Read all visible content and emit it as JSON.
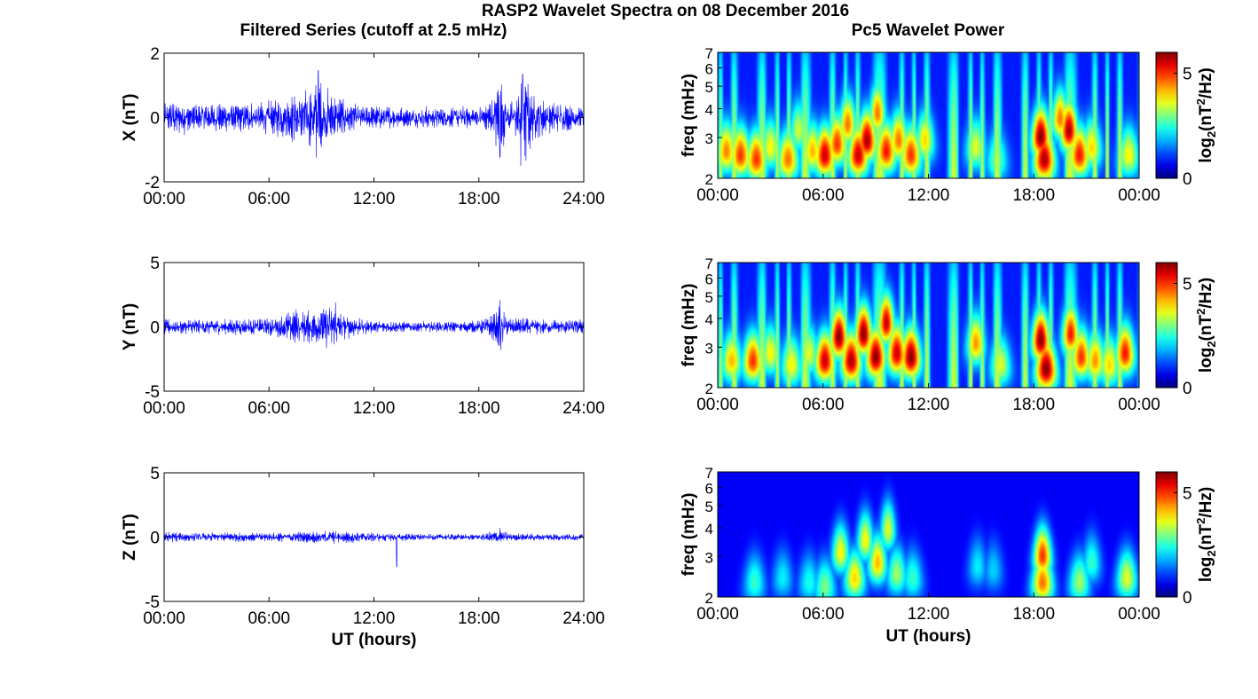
{
  "figure_title": "RASP2 Wavelet Spectra on 08 December 2016",
  "left_title": "Filtered Series (cutoff at 2.5 mHz)",
  "right_title": "Pc5 Wavelet Power",
  "colorbar_label_base": "log",
  "colorbar_label_sub": "2",
  "colorbar_label_unit": "(nT",
  "colorbar_label_sup": "2",
  "colorbar_label_tail": "/Hz)",
  "colors": {
    "series": "#0000ff",
    "axis": "#000000"
  },
  "chart_data": [
    {
      "type": "line",
      "panel": "X",
      "title": "",
      "xlabel": "",
      "ylabel": "X (nT)",
      "xlim": [
        0,
        24
      ],
      "ylim": [
        -2,
        2
      ],
      "xticks": [
        "00:00",
        "06:00",
        "12:00",
        "18:00",
        "24:00"
      ],
      "yticks": [
        "-2",
        "0",
        "2"
      ],
      "envelope_hours": [
        0,
        1,
        2,
        3,
        4,
        5,
        6,
        6.5,
        7,
        7.5,
        8,
        8.5,
        8.8,
        9,
        9.5,
        10,
        11,
        12,
        13,
        14,
        15,
        16,
        17,
        18,
        18.8,
        19.2,
        19.6,
        20,
        20.4,
        20.8,
        21,
        22,
        23,
        24
      ],
      "envelope_nT": [
        0.4,
        0.45,
        0.4,
        0.4,
        0.35,
        0.4,
        0.45,
        0.5,
        0.6,
        0.7,
        0.75,
        0.85,
        1.3,
        0.9,
        0.7,
        0.55,
        0.35,
        0.3,
        0.3,
        0.25,
        0.3,
        0.25,
        0.3,
        0.3,
        0.5,
        1.2,
        0.5,
        0.4,
        0.9,
        1.4,
        0.6,
        0.4,
        0.35,
        0.3
      ],
      "spikes": [
        {
          "x": 8.8,
          "y": 1.45
        },
        {
          "x": 8.7,
          "y": -1.25
        },
        {
          "x": 19.2,
          "y": -1.25
        },
        {
          "x": 20.4,
          "y": -1.5
        },
        {
          "x": 20.5,
          "y": 1.35
        }
      ]
    },
    {
      "type": "line",
      "panel": "Y",
      "title": "",
      "xlabel": "",
      "ylabel": "Y (nT)",
      "xlim": [
        0,
        24
      ],
      "ylim": [
        -5,
        5
      ],
      "xticks": [
        "00:00",
        "06:00",
        "12:00",
        "18:00",
        "24:00"
      ],
      "yticks": [
        "-5",
        "0",
        "5"
      ],
      "envelope_hours": [
        0,
        2,
        4,
        6,
        7,
        7.5,
        8,
        9,
        9.5,
        10,
        11,
        12,
        14,
        16,
        18,
        18.8,
        19.2,
        19.6,
        20,
        22,
        24
      ],
      "envelope_nT": [
        0.5,
        0.5,
        0.5,
        0.6,
        0.9,
        1.2,
        1.0,
        1.2,
        1.5,
        1.0,
        0.6,
        0.4,
        0.35,
        0.35,
        0.4,
        0.9,
        1.5,
        0.7,
        0.6,
        0.5,
        0.5
      ],
      "spikes": [
        {
          "x": 19.2,
          "y": 2.1
        },
        {
          "x": 19.25,
          "y": -1.8
        },
        {
          "x": 9.8,
          "y": 1.9
        }
      ]
    },
    {
      "type": "line",
      "panel": "Z",
      "title": "",
      "xlabel": "UT (hours)",
      "ylabel": "Z (nT)",
      "xlim": [
        0,
        24
      ],
      "ylim": [
        -5,
        5
      ],
      "xticks": [
        "00:00",
        "06:00",
        "12:00",
        "18:00",
        "24:00"
      ],
      "yticks": [
        "-5",
        "0",
        "5"
      ],
      "envelope_hours": [
        0,
        3,
        6,
        9,
        10,
        12,
        15,
        18,
        19.2,
        20,
        22,
        24
      ],
      "envelope_nT": [
        0.35,
        0.3,
        0.3,
        0.4,
        0.45,
        0.3,
        0.2,
        0.2,
        0.5,
        0.25,
        0.25,
        0.25
      ],
      "spikes": [
        {
          "x": 13.3,
          "y": -2.3
        },
        {
          "x": 19.2,
          "y": 0.7
        }
      ]
    },
    {
      "type": "heatmap",
      "panel": "X wavelet",
      "title": "",
      "xlabel": "",
      "ylabel": "freq (mHz)",
      "xlim": [
        0,
        24
      ],
      "ylim_mHz": [
        2,
        7
      ],
      "y_scale": "log",
      "xticks": [
        "00:00",
        "06:00",
        "12:00",
        "18:00",
        "00:00"
      ],
      "yticks": [
        "2",
        "3",
        "4",
        "5",
        "6",
        "7"
      ],
      "colorbar_ticks": [
        "0",
        "5"
      ],
      "clim": [
        0,
        6
      ],
      "colormap": "jet",
      "background_power": 0.9,
      "noise_level": 1.2,
      "blobs": [
        {
          "t": 0.5,
          "f": 2.6,
          "p": 4.5
        },
        {
          "t": 1.3,
          "f": 2.5,
          "p": 5.0
        },
        {
          "t": 2.2,
          "f": 2.4,
          "p": 5.0
        },
        {
          "t": 3.0,
          "f": 2.7,
          "p": 3.8
        },
        {
          "t": 4.0,
          "f": 2.4,
          "p": 4.6
        },
        {
          "t": 4.6,
          "f": 3.2,
          "p": 3.5
        },
        {
          "t": 5.4,
          "f": 2.6,
          "p": 4.2
        },
        {
          "t": 6.1,
          "f": 2.5,
          "p": 5.6
        },
        {
          "t": 6.8,
          "f": 2.8,
          "p": 5.0
        },
        {
          "t": 7.4,
          "f": 3.4,
          "p": 4.6
        },
        {
          "t": 8.0,
          "f": 2.5,
          "p": 5.6
        },
        {
          "t": 8.5,
          "f": 2.9,
          "p": 5.8
        },
        {
          "t": 9.1,
          "f": 3.8,
          "p": 4.6
        },
        {
          "t": 9.6,
          "f": 2.6,
          "p": 5.2
        },
        {
          "t": 10.3,
          "f": 2.9,
          "p": 4.6
        },
        {
          "t": 11.0,
          "f": 2.5,
          "p": 5.0
        },
        {
          "t": 11.8,
          "f": 2.9,
          "p": 4.0
        },
        {
          "t": 14.7,
          "f": 2.7,
          "p": 3.6
        },
        {
          "t": 15.9,
          "f": 2.4,
          "p": 3.0
        },
        {
          "t": 18.4,
          "f": 3.0,
          "p": 6.0
        },
        {
          "t": 18.6,
          "f": 2.4,
          "p": 5.8
        },
        {
          "t": 19.5,
          "f": 3.6,
          "p": 4.6
        },
        {
          "t": 20.0,
          "f": 3.2,
          "p": 5.8
        },
        {
          "t": 20.6,
          "f": 2.5,
          "p": 5.2
        },
        {
          "t": 21.3,
          "f": 2.7,
          "p": 4.0
        },
        {
          "t": 23.4,
          "f": 2.5,
          "p": 3.8
        }
      ]
    },
    {
      "type": "heatmap",
      "panel": "Y wavelet",
      "title": "",
      "xlabel": "",
      "ylabel": "freq (mHz)",
      "xlim": [
        0,
        24
      ],
      "ylim_mHz": [
        2,
        7
      ],
      "y_scale": "log",
      "xticks": [
        "00:00",
        "06:00",
        "12:00",
        "18:00",
        "00:00"
      ],
      "yticks": [
        "2",
        "3",
        "4",
        "5",
        "6",
        "7"
      ],
      "colorbar_ticks": [
        "0",
        "5"
      ],
      "clim": [
        0,
        6
      ],
      "colormap": "jet",
      "background_power": 0.9,
      "noise_level": 1.2,
      "blobs": [
        {
          "t": 0.8,
          "f": 2.6,
          "p": 4.2
        },
        {
          "t": 2.0,
          "f": 2.6,
          "p": 5.0
        },
        {
          "t": 3.0,
          "f": 2.8,
          "p": 3.8
        },
        {
          "t": 4.2,
          "f": 2.5,
          "p": 3.8
        },
        {
          "t": 5.2,
          "f": 2.8,
          "p": 3.6
        },
        {
          "t": 6.1,
          "f": 2.6,
          "p": 5.6
        },
        {
          "t": 6.9,
          "f": 3.3,
          "p": 6.0
        },
        {
          "t": 7.6,
          "f": 2.6,
          "p": 5.8
        },
        {
          "t": 8.3,
          "f": 3.4,
          "p": 6.0
        },
        {
          "t": 9.0,
          "f": 2.7,
          "p": 6.0
        },
        {
          "t": 9.6,
          "f": 3.8,
          "p": 5.6
        },
        {
          "t": 10.2,
          "f": 2.8,
          "p": 5.6
        },
        {
          "t": 11.0,
          "f": 2.7,
          "p": 6.0
        },
        {
          "t": 14.7,
          "f": 3.1,
          "p": 4.4
        },
        {
          "t": 16.1,
          "f": 2.5,
          "p": 3.6
        },
        {
          "t": 18.4,
          "f": 3.2,
          "p": 6.0
        },
        {
          "t": 18.7,
          "f": 2.4,
          "p": 6.0
        },
        {
          "t": 20.1,
          "f": 3.4,
          "p": 5.2
        },
        {
          "t": 20.7,
          "f": 2.7,
          "p": 5.0
        },
        {
          "t": 21.5,
          "f": 2.6,
          "p": 4.4
        },
        {
          "t": 22.3,
          "f": 2.5,
          "p": 4.0
        },
        {
          "t": 23.2,
          "f": 2.8,
          "p": 5.2
        }
      ]
    },
    {
      "type": "heatmap",
      "panel": "Z wavelet",
      "title": "",
      "xlabel": "UT (hours)",
      "ylabel": "freq (mHz)",
      "xlim": [
        0,
        24
      ],
      "ylim_mHz": [
        2,
        7
      ],
      "y_scale": "log",
      "xticks": [
        "00:00",
        "06:00",
        "12:00",
        "18:00",
        "00:00"
      ],
      "yticks": [
        "2",
        "3",
        "4",
        "5",
        "6",
        "7"
      ],
      "colorbar_ticks": [
        "0",
        "5"
      ],
      "clim": [
        0,
        6
      ],
      "colormap": "jet",
      "background_power": 0.7,
      "noise_level": 0.0,
      "blobs": [
        {
          "t": 2.1,
          "f": 2.3,
          "p": 2.6
        },
        {
          "t": 3.7,
          "f": 2.4,
          "p": 2.2
        },
        {
          "t": 5.2,
          "f": 2.3,
          "p": 2.4
        },
        {
          "t": 6.1,
          "f": 2.2,
          "p": 3.0
        },
        {
          "t": 7.0,
          "f": 3.1,
          "p": 3.8
        },
        {
          "t": 7.8,
          "f": 2.4,
          "p": 4.0
        },
        {
          "t": 8.4,
          "f": 3.5,
          "p": 3.8
        },
        {
          "t": 9.1,
          "f": 2.8,
          "p": 4.2
        },
        {
          "t": 9.7,
          "f": 3.9,
          "p": 3.6
        },
        {
          "t": 10.2,
          "f": 2.5,
          "p": 3.2
        },
        {
          "t": 11.1,
          "f": 2.4,
          "p": 2.6
        },
        {
          "t": 14.8,
          "f": 2.7,
          "p": 2.2
        },
        {
          "t": 15.7,
          "f": 2.6,
          "p": 2.0
        },
        {
          "t": 18.5,
          "f": 3.0,
          "p": 5.0
        },
        {
          "t": 18.5,
          "f": 2.3,
          "p": 4.6
        },
        {
          "t": 20.6,
          "f": 2.3,
          "p": 3.2
        },
        {
          "t": 21.3,
          "f": 2.8,
          "p": 2.6
        },
        {
          "t": 23.3,
          "f": 2.4,
          "p": 3.6
        }
      ]
    }
  ]
}
